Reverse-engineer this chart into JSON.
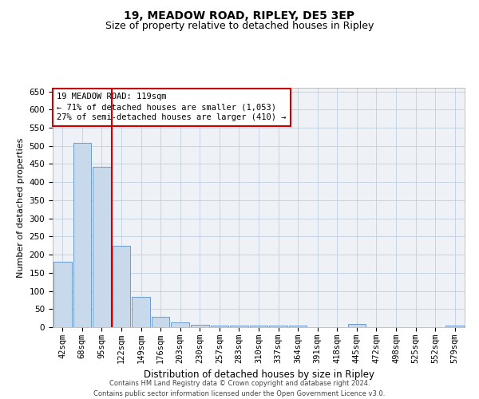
{
  "title1": "19, MEADOW ROAD, RIPLEY, DE5 3EP",
  "title2": "Size of property relative to detached houses in Ripley",
  "xlabel": "Distribution of detached houses by size in Ripley",
  "ylabel": "Number of detached properties",
  "categories": [
    "42sqm",
    "68sqm",
    "95sqm",
    "122sqm",
    "149sqm",
    "176sqm",
    "203sqm",
    "230sqm",
    "257sqm",
    "283sqm",
    "310sqm",
    "337sqm",
    "364sqm",
    "391sqm",
    "418sqm",
    "445sqm",
    "472sqm",
    "498sqm",
    "525sqm",
    "552sqm",
    "579sqm"
  ],
  "values": [
    180,
    508,
    443,
    225,
    83,
    28,
    14,
    7,
    5,
    5,
    5,
    5,
    5,
    0,
    0,
    8,
    0,
    0,
    0,
    0,
    5
  ],
  "bar_color": "#c9d9ec",
  "bar_edge_color": "#5b8fc9",
  "highlight_color": "#cc0000",
  "annotation_box_text": "19 MEADOW ROAD: 119sqm\n← 71% of detached houses are smaller (1,053)\n27% of semi-detached houses are larger (410) →",
  "annotation_box_color": "#cc0000",
  "ylim": [
    0,
    660
  ],
  "yticks": [
    0,
    50,
    100,
    150,
    200,
    250,
    300,
    350,
    400,
    450,
    500,
    550,
    600,
    650
  ],
  "grid_color": "#c0cfe0",
  "bg_color": "#eef2f7",
  "footnote": "Contains HM Land Registry data © Crown copyright and database right 2024.\nContains public sector information licensed under the Open Government Licence v3.0.",
  "title1_fontsize": 10,
  "title2_fontsize": 9,
  "xlabel_fontsize": 8.5,
  "ylabel_fontsize": 8,
  "tick_fontsize": 7.5,
  "annotation_fontsize": 7.5,
  "footnote_fontsize": 6
}
